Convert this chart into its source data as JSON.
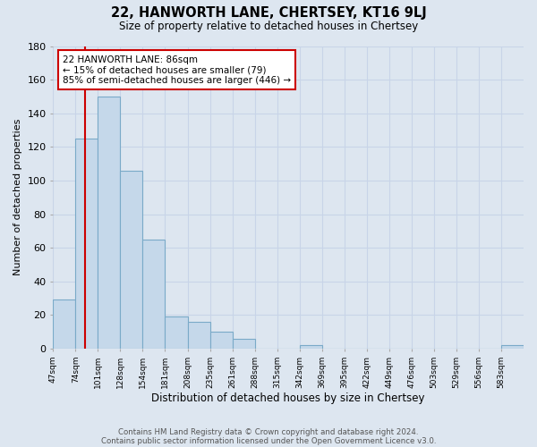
{
  "title": "22, HANWORTH LANE, CHERTSEY, KT16 9LJ",
  "subtitle": "Size of property relative to detached houses in Chertsey",
  "xlabel": "Distribution of detached houses by size in Chertsey",
  "ylabel": "Number of detached properties",
  "bin_labels": [
    "47sqm",
    "74sqm",
    "101sqm",
    "128sqm",
    "154sqm",
    "181sqm",
    "208sqm",
    "235sqm",
    "261sqm",
    "288sqm",
    "315sqm",
    "342sqm",
    "369sqm",
    "395sqm",
    "422sqm",
    "449sqm",
    "476sqm",
    "503sqm",
    "529sqm",
    "556sqm",
    "583sqm"
  ],
  "bar_values": [
    29,
    125,
    150,
    106,
    65,
    19,
    16,
    10,
    6,
    0,
    0,
    2,
    0,
    0,
    0,
    0,
    0,
    0,
    0,
    0,
    2
  ],
  "bar_color": "#c5d8ea",
  "bar_edge_color": "#7aaac8",
  "property_line_label": "22 HANWORTH LANE: 86sqm",
  "annotation_line1": "← 15% of detached houses are smaller (79)",
  "annotation_line2": "85% of semi-detached houses are larger (446) →",
  "annotation_box_color": "#ffffff",
  "annotation_box_edge": "#cc0000",
  "red_line_color": "#cc0000",
  "ylim": [
    0,
    180
  ],
  "yticks": [
    0,
    20,
    40,
    60,
    80,
    100,
    120,
    140,
    160,
    180
  ],
  "grid_color": "#c8d4e8",
  "bg_color": "#dde6f0",
  "footnote1": "Contains HM Land Registry data © Crown copyright and database right 2024.",
  "footnote2": "Contains public sector information licensed under the Open Government Licence v3.0.",
  "bin_starts": [
    47,
    74,
    101,
    128,
    154,
    181,
    208,
    235,
    261,
    288,
    315,
    342,
    369,
    395,
    422,
    449,
    476,
    503,
    529,
    556,
    583
  ],
  "property_sqm": 86
}
